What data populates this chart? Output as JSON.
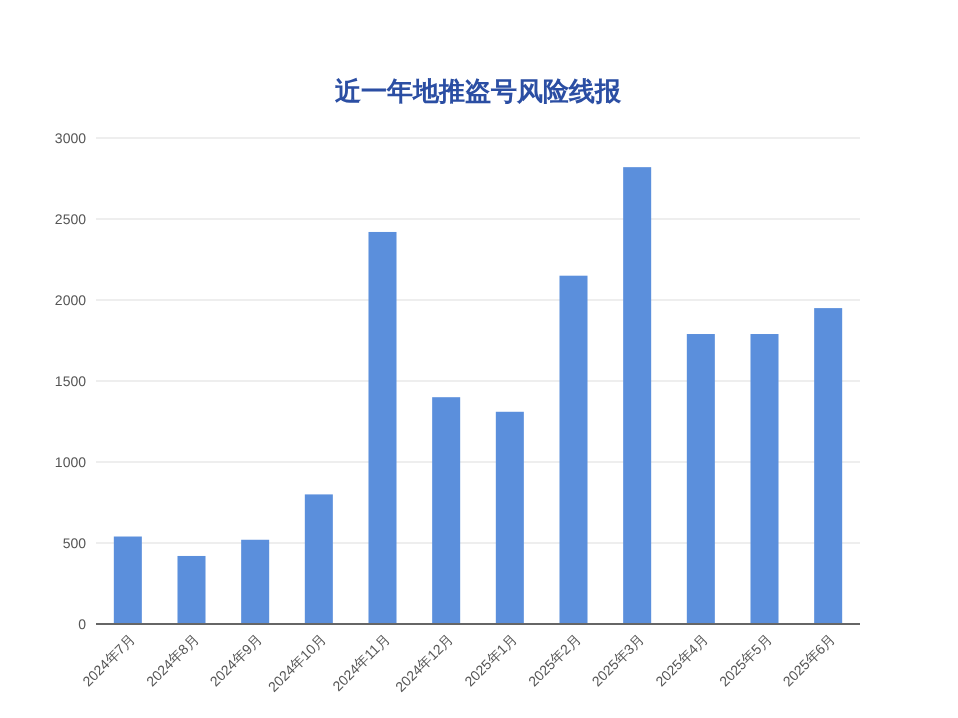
{
  "chart_data": {
    "type": "bar",
    "title": "近一年地推盗号风险线报",
    "categories": [
      "2024年7月",
      "2024年8月",
      "2024年9月",
      "2024年10月",
      "2024年11月",
      "2024年12月",
      "2025年1月",
      "2025年2月",
      "2025年3月",
      "2025年4月",
      "2025年5月",
      "2025年6月"
    ],
    "values": [
      540,
      420,
      520,
      800,
      2420,
      1400,
      1310,
      2150,
      2820,
      1790,
      1790,
      1950
    ],
    "color": "#5b8fdc",
    "ylim": [
      0,
      3000
    ],
    "yticks": [
      0,
      500,
      1000,
      1500,
      2000,
      2500,
      3000
    ],
    "grid": "y"
  }
}
